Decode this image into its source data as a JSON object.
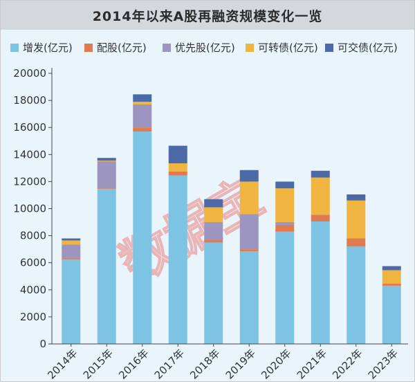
{
  "chart_data": {
    "type": "bar",
    "stacked": true,
    "title": "2014年以来A股再融资规模变化一览",
    "categories": [
      "2014年",
      "2015年",
      "2016年",
      "2017年",
      "2018年",
      "2019年",
      "2020年",
      "2021年",
      "2022年",
      "2023年"
    ],
    "series": [
      {
        "name": "增发(亿元)",
        "color": "#7dc3e3",
        "values": [
          6250,
          11450,
          15700,
          12450,
          7500,
          6850,
          8300,
          9050,
          7200,
          4300
        ]
      },
      {
        "name": "配股(亿元)",
        "color": "#e07b4f",
        "values": [
          100,
          50,
          300,
          300,
          200,
          150,
          500,
          500,
          600,
          150
        ]
      },
      {
        "name": "优先股(亿元)",
        "color": "#9b95bf",
        "values": [
          1000,
          2000,
          1700,
          0,
          1300,
          2600,
          200,
          0,
          0,
          0
        ]
      },
      {
        "name": "可转债(亿元)",
        "color": "#f0b541",
        "values": [
          300,
          50,
          200,
          600,
          1100,
          2400,
          2500,
          2750,
          2800,
          1000
        ]
      },
      {
        "name": "可交债(亿元)",
        "color": "#4c6aa8",
        "values": [
          150,
          200,
          550,
          1300,
          600,
          850,
          500,
          500,
          450,
          300
        ]
      }
    ],
    "ylim": [
      0,
      20000
    ],
    "yticks": [
      0,
      2000,
      4000,
      6000,
      8000,
      10000,
      12000,
      14000,
      16000,
      18000,
      20000
    ],
    "legend_position": "top",
    "grid": false
  },
  "watermark": "数据宝"
}
